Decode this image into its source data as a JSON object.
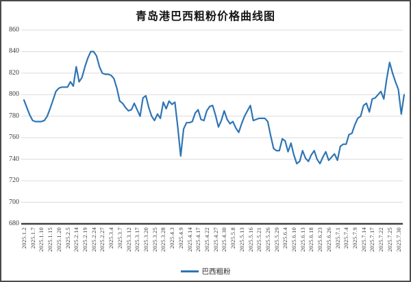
{
  "title": "青岛港巴西粗粉价格曲线图",
  "legend": {
    "series_label": "巴西粗粉"
  },
  "colors": {
    "line": "#2E74B5",
    "grid": "#DBDBDB",
    "axis": "#3f3f3f",
    "text": "#3f3f3f",
    "background": "#ffffff"
  },
  "chart_data": {
    "type": "line",
    "title": "青岛港巴西粗粉价格曲线图",
    "xlabel": "",
    "ylabel": "",
    "ylim": [
      680,
      860
    ],
    "yticks": [
      860,
      840,
      820,
      800,
      780,
      760,
      740,
      720,
      700,
      680
    ],
    "grid": "horizontal",
    "legend_position": "bottom-center",
    "x_labels": [
      "2025.1.2",
      "2025.1.7",
      "2025.1.10",
      "2025.1.15",
      "2025.1.20",
      "2025.2.5",
      "2025.2.14",
      "2025.2.19",
      "2025.2.24",
      "2025.2.27",
      "2025.3.4",
      "2025.3.7",
      "2025.3.12",
      "2025.3.17",
      "2025.3.20",
      "2025.3.25",
      "2025.3.28",
      "2025.4.3",
      "2025.4.9",
      "2025.4.14",
      "2025.4.17",
      "2025.4.22",
      "2025.4.27",
      "2025.4.30",
      "2025.5.8",
      "2025.5.13",
      "2025.5.16",
      "2025.5.21",
      "2025.5.26",
      "2025.5.29",
      "2025.6.4",
      "2025.6.10",
      "2025.6.13",
      "2025.6.18",
      "2025.6.23",
      "2025.6.26",
      "2025.7.1",
      "2025.7.4",
      "2025.7.9",
      "2025.7.14",
      "2025.7.17",
      "2025.7.22",
      "2025.7.25",
      "2025.7.30"
    ],
    "label_every": 3,
    "series": [
      {
        "name": "巴西粗粉",
        "values": [
          795,
          788,
          781,
          776,
          775,
          775,
          775,
          776,
          780,
          787,
          795,
          803,
          806,
          807,
          807,
          807,
          812,
          808,
          826,
          812,
          816,
          826,
          834,
          840,
          840,
          836,
          826,
          820,
          819,
          819,
          818,
          815,
          806,
          794,
          792,
          788,
          785,
          786,
          792,
          786,
          780,
          797,
          799,
          788,
          780,
          776,
          782,
          778,
          793,
          787,
          794,
          791,
          793,
          770,
          743,
          768,
          774,
          774,
          775,
          783,
          786,
          777,
          776,
          785,
          789,
          790,
          781,
          770,
          776,
          785,
          777,
          773,
          775,
          769,
          765,
          773,
          780,
          785,
          790,
          776,
          777,
          778,
          778,
          778,
          775,
          762,
          750,
          748,
          748,
          759,
          757,
          747,
          755,
          744,
          736,
          738,
          748,
          741,
          738,
          744,
          748,
          740,
          736,
          742,
          747,
          739,
          742,
          745,
          739,
          752,
          754,
          754,
          763,
          764,
          772,
          778,
          780,
          790,
          792,
          784,
          796,
          797,
          800,
          803,
          796,
          815,
          830,
          820,
          812,
          805,
          782,
          800
        ]
      }
    ]
  }
}
